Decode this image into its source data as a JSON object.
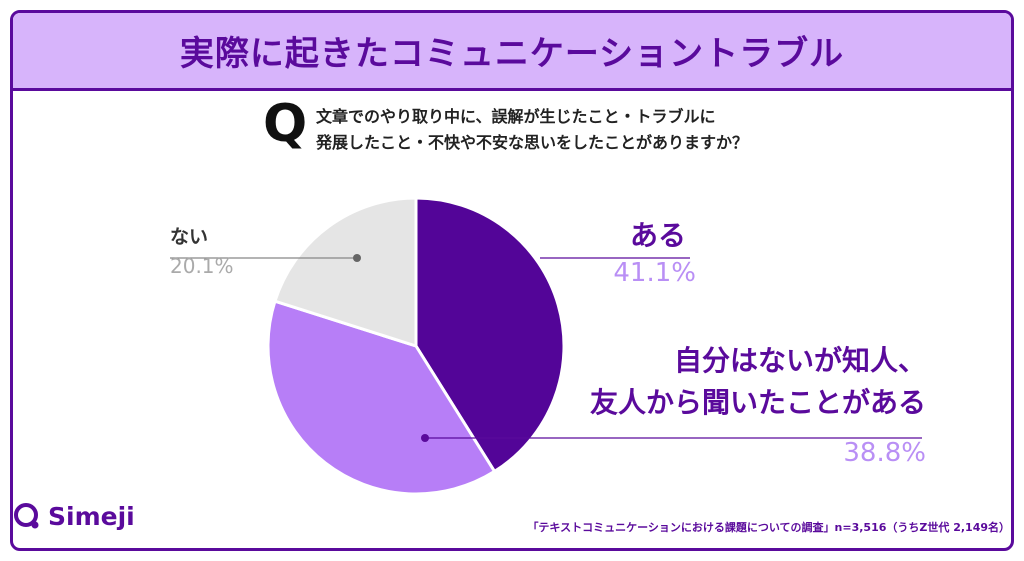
{
  "title": "実際に起きたコミュニケーショントラブル",
  "question": {
    "mark": "Q",
    "line1": "文章でのやり取り中に、誤解が生じたこと・トラブルに",
    "line2": "発展したこと・不快や不安な思いをしたことがありますか？"
  },
  "chart_data": {
    "type": "pie",
    "title": "実際に起きたコミュニケーショントラブル",
    "slices": [
      {
        "label": "ある",
        "value": 41.1,
        "value_text": "41.1%",
        "color": "#530598"
      },
      {
        "label_line1": "自分はないが知人、",
        "label_line2": "友人から聞いたことがある",
        "value": 38.8,
        "value_text": "38.8%",
        "color": "#b77ef7"
      },
      {
        "label": "ない",
        "value": 20.1,
        "value_text": "20.1%",
        "color": "#e5e5e5"
      }
    ]
  },
  "colors": {
    "brand": "#5a0a9c",
    "banner": "#d7b4fb",
    "accent_light": "#b98ff5"
  },
  "brand": {
    "name": "Simeji"
  },
  "source": "「テキストコミュニケーションにおける課題についての調査」n=3,516（うちZ世代 2,149名）"
}
